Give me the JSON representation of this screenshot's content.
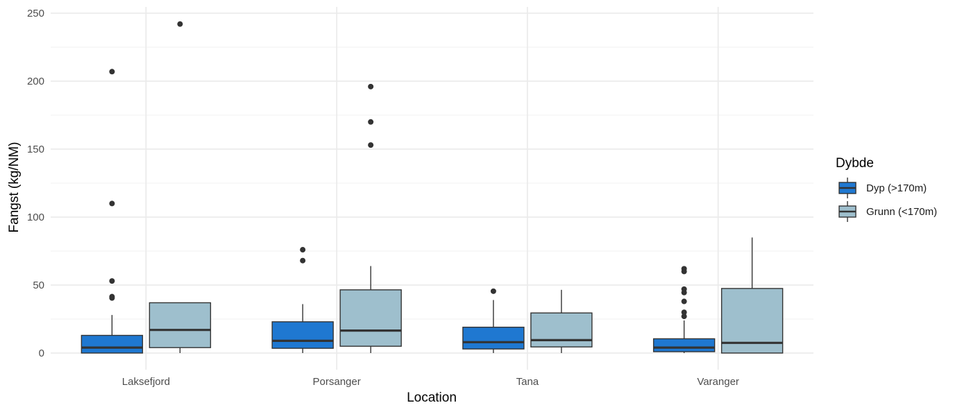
{
  "chart_data": {
    "type": "boxplot",
    "xlabel": "Location",
    "ylabel": "Fangst (kg/NM)",
    "ylim": [
      -13,
      250
    ],
    "yticks": [
      0,
      50,
      100,
      150,
      200,
      250
    ],
    "categories": [
      "Laksefjord",
      "Porsanger",
      "Tana",
      "Varanger"
    ],
    "grid": true,
    "legend": {
      "title": "Dybde",
      "position": "right",
      "entries": [
        "Dyp (>170m)",
        "Grunn (<170m)"
      ]
    },
    "series": [
      {
        "name": "Dyp (>170m)",
        "color": "#1f78d1",
        "boxes": [
          {
            "category": "Laksefjord",
            "whisker_low": 0,
            "q1": 0,
            "median": 4,
            "q3": 13,
            "whisker_high": 28,
            "outliers": [
              40.5,
              41.5,
              53,
              110,
              207
            ]
          },
          {
            "category": "Porsanger",
            "whisker_low": 0,
            "q1": 3.5,
            "median": 9,
            "q3": 23,
            "whisker_high": 36,
            "outliers": [
              68,
              76
            ]
          },
          {
            "category": "Tana",
            "whisker_low": 0,
            "q1": 3,
            "median": 8,
            "q3": 19,
            "whisker_high": 39,
            "outliers": [
              45.5
            ]
          },
          {
            "category": "Varanger",
            "whisker_low": 0,
            "q1": 1,
            "median": 4,
            "q3": 10.5,
            "whisker_high": 24,
            "outliers": [
              27,
              30,
              38,
              44.5,
              47,
              60,
              62
            ]
          }
        ]
      },
      {
        "name": "Grunn (<170m)",
        "color": "#9ebfcd",
        "boxes": [
          {
            "category": "Laksefjord",
            "whisker_low": 0,
            "q1": 4,
            "median": 17,
            "q3": 37,
            "whisker_high": 37,
            "outliers": [
              242
            ]
          },
          {
            "category": "Porsanger",
            "whisker_low": 0,
            "q1": 5,
            "median": 16.5,
            "q3": 46.5,
            "whisker_high": 64,
            "outliers": [
              153,
              170,
              196
            ]
          },
          {
            "category": "Tana",
            "whisker_low": 0,
            "q1": 4.5,
            "median": 9.5,
            "q3": 29.5,
            "whisker_high": 46.5,
            "outliers": []
          },
          {
            "category": "Varanger",
            "whisker_low": 0,
            "q1": 0,
            "median": 7.5,
            "q3": 47.5,
            "whisker_high": 85,
            "outliers": []
          }
        ]
      }
    ]
  }
}
